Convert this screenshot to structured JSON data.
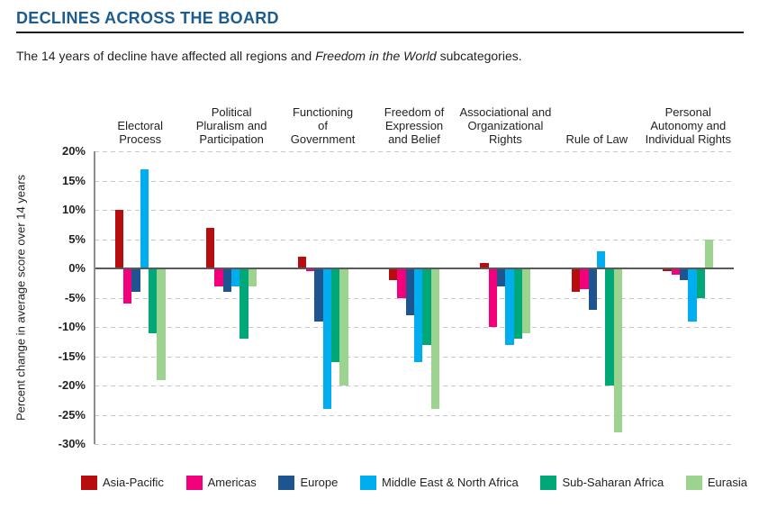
{
  "header": {
    "title": "DECLINES ACROSS THE BOARD",
    "subtitle_prefix": "The 14 years of decline have affected all regions and ",
    "subtitle_italic": "Freedom in the World",
    "subtitle_suffix": " subcategories."
  },
  "chart_data": {
    "type": "bar",
    "title": "DECLINES ACROSS THE BOARD",
    "subtitle": "The 14 years of decline have affected all regions and Freedom in the World subcategories.",
    "xlabel": "",
    "ylabel": "Percent change in average score over 14 years",
    "ylim": [
      -30,
      20
    ],
    "ytick_step": 5,
    "ytick_labels": [
      "20%",
      "15%",
      "10%",
      "5%",
      "0%",
      "-5%",
      "-10%",
      "-15%",
      "-20%",
      "-25%",
      "-30%"
    ],
    "grid": "horizontal-dashed",
    "legend_position": "bottom",
    "categories": [
      "Electoral Process",
      "Political Pluralism and Participation",
      "Functioning of Government",
      "Freedom of Expression and Belief",
      "Associational and Organizational Rights",
      "Rule of Law",
      "Personal Autonomy and Individual Rights"
    ],
    "series": [
      {
        "name": "Asia-Pacific",
        "color": "#b70d0e",
        "values": [
          10,
          7,
          2,
          -2,
          1,
          -4,
          -0.5
        ]
      },
      {
        "name": "Americas",
        "color": "#f3017d",
        "values": [
          -6,
          -3,
          -0.5,
          -5,
          -10,
          -3.5,
          -1
        ]
      },
      {
        "name": "Europe",
        "color": "#1e5591",
        "values": [
          -4,
          -4,
          -9,
          -8,
          -3,
          -7,
          -2
        ]
      },
      {
        "name": "Middle East & North Africa",
        "color": "#00aeef",
        "values": [
          17,
          -3,
          -24,
          -16,
          -13,
          3,
          -9
        ]
      },
      {
        "name": "Sub-Saharan Africa",
        "color": "#00a878",
        "values": [
          -11,
          -12,
          -16,
          -13,
          -12,
          -20,
          -5
        ]
      },
      {
        "name": "Eurasia",
        "color": "#9bd38f",
        "values": [
          -19,
          -3,
          -20,
          -24,
          -11,
          -28,
          5
        ]
      }
    ]
  }
}
